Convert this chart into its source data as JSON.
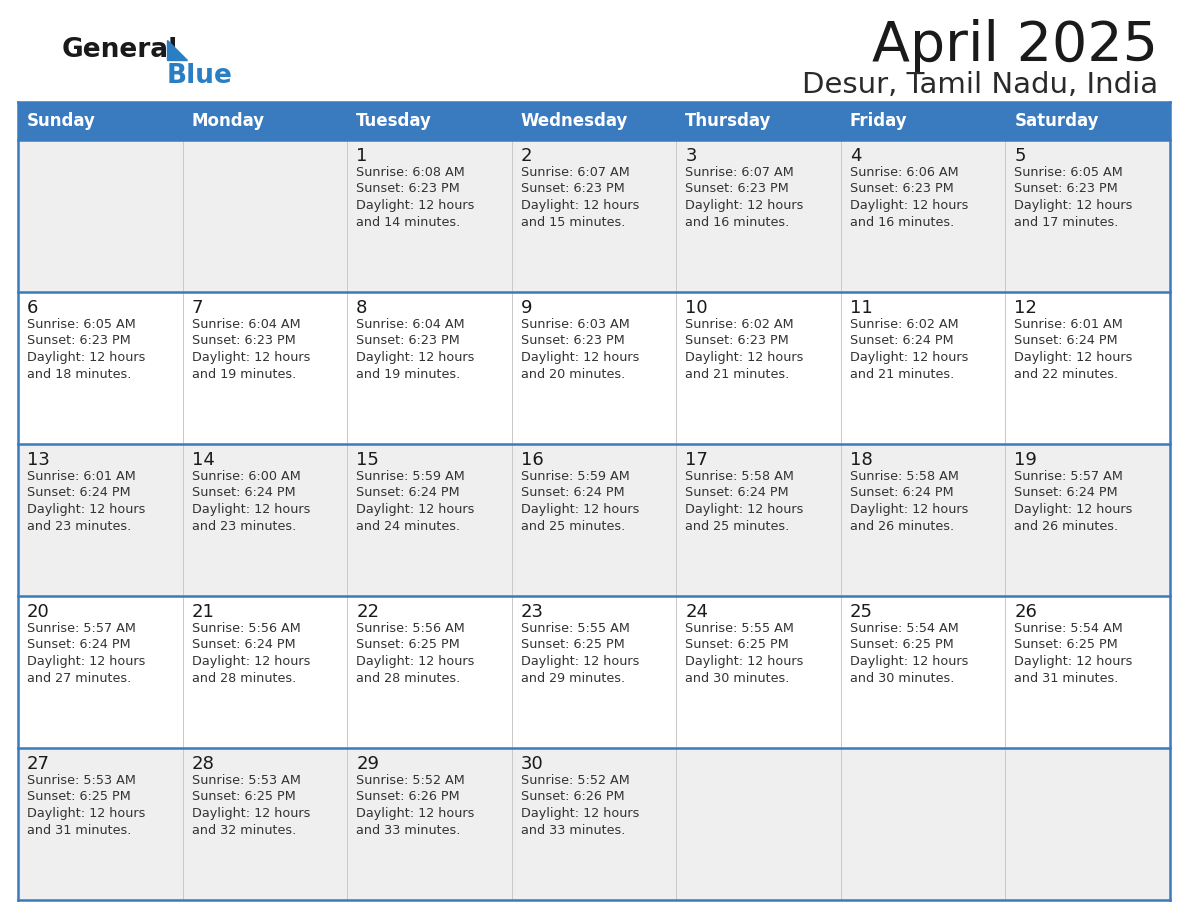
{
  "title": "April 2025",
  "subtitle": "Desur, Tamil Nadu, India",
  "header_bg": "#3a7abf",
  "header_text": "#ffffff",
  "row_bg_odd": "#efefef",
  "row_bg_even": "#ffffff",
  "border_color": "#3a7abf",
  "sep_color": "#c8c8c8",
  "day_headers": [
    "Sunday",
    "Monday",
    "Tuesday",
    "Wednesday",
    "Thursday",
    "Friday",
    "Saturday"
  ],
  "title_color": "#1a1a1a",
  "subtitle_color": "#2a2a2a",
  "day_num_color": "#1a1a1a",
  "cell_text_color": "#333333",
  "logo_general_color": "#1a1a1a",
  "logo_blue_color": "#2a7fc4",
  "logo_triangle_color": "#2a7fc4",
  "days": [
    {
      "date": 1,
      "row": 0,
      "col": 2,
      "sunrise": "6:08 AM",
      "sunset": "6:23 PM",
      "daylight": "12 hours and 14 minutes."
    },
    {
      "date": 2,
      "row": 0,
      "col": 3,
      "sunrise": "6:07 AM",
      "sunset": "6:23 PM",
      "daylight": "12 hours and 15 minutes."
    },
    {
      "date": 3,
      "row": 0,
      "col": 4,
      "sunrise": "6:07 AM",
      "sunset": "6:23 PM",
      "daylight": "12 hours and 16 minutes."
    },
    {
      "date": 4,
      "row": 0,
      "col": 5,
      "sunrise": "6:06 AM",
      "sunset": "6:23 PM",
      "daylight": "12 hours and 16 minutes."
    },
    {
      "date": 5,
      "row": 0,
      "col": 6,
      "sunrise": "6:05 AM",
      "sunset": "6:23 PM",
      "daylight": "12 hours and 17 minutes."
    },
    {
      "date": 6,
      "row": 1,
      "col": 0,
      "sunrise": "6:05 AM",
      "sunset": "6:23 PM",
      "daylight": "12 hours and 18 minutes."
    },
    {
      "date": 7,
      "row": 1,
      "col": 1,
      "sunrise": "6:04 AM",
      "sunset": "6:23 PM",
      "daylight": "12 hours and 19 minutes."
    },
    {
      "date": 8,
      "row": 1,
      "col": 2,
      "sunrise": "6:04 AM",
      "sunset": "6:23 PM",
      "daylight": "12 hours and 19 minutes."
    },
    {
      "date": 9,
      "row": 1,
      "col": 3,
      "sunrise": "6:03 AM",
      "sunset": "6:23 PM",
      "daylight": "12 hours and 20 minutes."
    },
    {
      "date": 10,
      "row": 1,
      "col": 4,
      "sunrise": "6:02 AM",
      "sunset": "6:23 PM",
      "daylight": "12 hours and 21 minutes."
    },
    {
      "date": 11,
      "row": 1,
      "col": 5,
      "sunrise": "6:02 AM",
      "sunset": "6:24 PM",
      "daylight": "12 hours and 21 minutes."
    },
    {
      "date": 12,
      "row": 1,
      "col": 6,
      "sunrise": "6:01 AM",
      "sunset": "6:24 PM",
      "daylight": "12 hours and 22 minutes."
    },
    {
      "date": 13,
      "row": 2,
      "col": 0,
      "sunrise": "6:01 AM",
      "sunset": "6:24 PM",
      "daylight": "12 hours and 23 minutes."
    },
    {
      "date": 14,
      "row": 2,
      "col": 1,
      "sunrise": "6:00 AM",
      "sunset": "6:24 PM",
      "daylight": "12 hours and 23 minutes."
    },
    {
      "date": 15,
      "row": 2,
      "col": 2,
      "sunrise": "5:59 AM",
      "sunset": "6:24 PM",
      "daylight": "12 hours and 24 minutes."
    },
    {
      "date": 16,
      "row": 2,
      "col": 3,
      "sunrise": "5:59 AM",
      "sunset": "6:24 PM",
      "daylight": "12 hours and 25 minutes."
    },
    {
      "date": 17,
      "row": 2,
      "col": 4,
      "sunrise": "5:58 AM",
      "sunset": "6:24 PM",
      "daylight": "12 hours and 25 minutes."
    },
    {
      "date": 18,
      "row": 2,
      "col": 5,
      "sunrise": "5:58 AM",
      "sunset": "6:24 PM",
      "daylight": "12 hours and 26 minutes."
    },
    {
      "date": 19,
      "row": 2,
      "col": 6,
      "sunrise": "5:57 AM",
      "sunset": "6:24 PM",
      "daylight": "12 hours and 26 minutes."
    },
    {
      "date": 20,
      "row": 3,
      "col": 0,
      "sunrise": "5:57 AM",
      "sunset": "6:24 PM",
      "daylight": "12 hours and 27 minutes."
    },
    {
      "date": 21,
      "row": 3,
      "col": 1,
      "sunrise": "5:56 AM",
      "sunset": "6:24 PM",
      "daylight": "12 hours and 28 minutes."
    },
    {
      "date": 22,
      "row": 3,
      "col": 2,
      "sunrise": "5:56 AM",
      "sunset": "6:25 PM",
      "daylight": "12 hours and 28 minutes."
    },
    {
      "date": 23,
      "row": 3,
      "col": 3,
      "sunrise": "5:55 AM",
      "sunset": "6:25 PM",
      "daylight": "12 hours and 29 minutes."
    },
    {
      "date": 24,
      "row": 3,
      "col": 4,
      "sunrise": "5:55 AM",
      "sunset": "6:25 PM",
      "daylight": "12 hours and 30 minutes."
    },
    {
      "date": 25,
      "row": 3,
      "col": 5,
      "sunrise": "5:54 AM",
      "sunset": "6:25 PM",
      "daylight": "12 hours and 30 minutes."
    },
    {
      "date": 26,
      "row": 3,
      "col": 6,
      "sunrise": "5:54 AM",
      "sunset": "6:25 PM",
      "daylight": "12 hours and 31 minutes."
    },
    {
      "date": 27,
      "row": 4,
      "col": 0,
      "sunrise": "5:53 AM",
      "sunset": "6:25 PM",
      "daylight": "12 hours and 31 minutes."
    },
    {
      "date": 28,
      "row": 4,
      "col": 1,
      "sunrise": "5:53 AM",
      "sunset": "6:25 PM",
      "daylight": "12 hours and 32 minutes."
    },
    {
      "date": 29,
      "row": 4,
      "col": 2,
      "sunrise": "5:52 AM",
      "sunset": "6:26 PM",
      "daylight": "12 hours and 33 minutes."
    },
    {
      "date": 30,
      "row": 4,
      "col": 3,
      "sunrise": "5:52 AM",
      "sunset": "6:26 PM",
      "daylight": "12 hours and 33 minutes."
    }
  ]
}
